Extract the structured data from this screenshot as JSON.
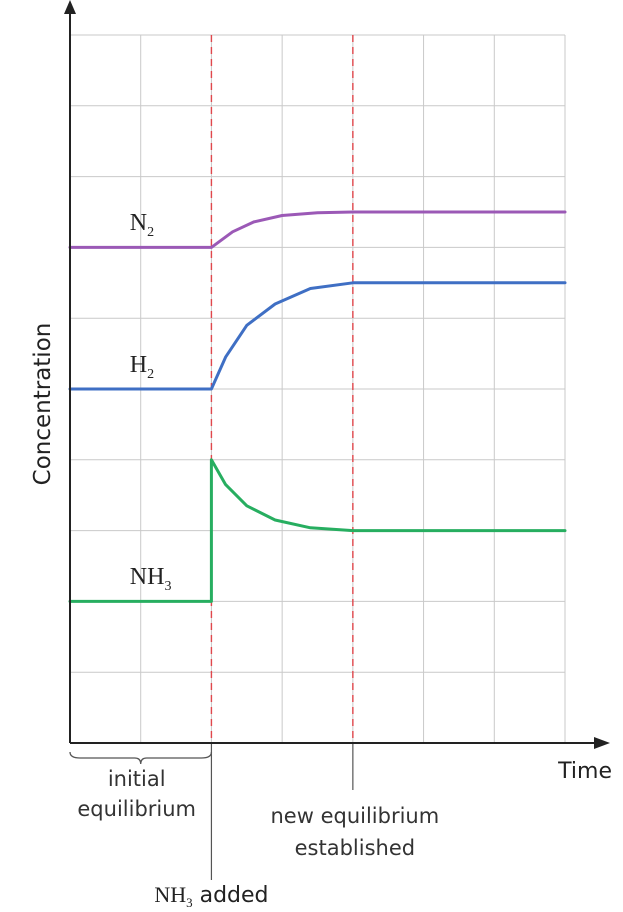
{
  "chart_data": {
    "type": "line",
    "xlabel": "Time",
    "ylabel": "Concentration",
    "xlim": [
      0,
      7
    ],
    "ylim": [
      0,
      10
    ],
    "grid": true,
    "events": [
      {
        "x": 2,
        "style": "dashed",
        "color": "#e0474c",
        "label": {
          "main": "NH",
          "sub": "3",
          "suffix": " added"
        }
      },
      {
        "x": 4,
        "style": "dashed",
        "color": "#e0474c",
        "label": {
          "lines": [
            "new equilibrium",
            "established"
          ]
        }
      }
    ],
    "annotations": {
      "initial_region": {
        "from": 0,
        "to": 2,
        "lines": [
          "initial",
          "equilibrium"
        ]
      }
    },
    "series": [
      {
        "name": "N2",
        "label_main": "N",
        "label_sub": "2",
        "color": "#9b59b6",
        "label_at": {
          "x": 1.1,
          "y": 7.3
        },
        "points": [
          [
            0,
            7
          ],
          [
            2,
            7
          ],
          [
            2.3,
            7.22
          ],
          [
            2.6,
            7.36
          ],
          [
            3.0,
            7.45
          ],
          [
            3.5,
            7.49
          ],
          [
            4,
            7.5
          ],
          [
            7,
            7.5
          ]
        ]
      },
      {
        "name": "H2",
        "label_main": "H",
        "label_sub": "2",
        "color": "#3f6fc4",
        "label_at": {
          "x": 1.1,
          "y": 5.3
        },
        "points": [
          [
            0,
            5
          ],
          [
            2,
            5
          ],
          [
            2.2,
            5.45
          ],
          [
            2.5,
            5.9
          ],
          [
            2.9,
            6.2
          ],
          [
            3.4,
            6.42
          ],
          [
            4,
            6.5
          ],
          [
            7,
            6.5
          ]
        ]
      },
      {
        "name": "NH3",
        "label_main": "NH",
        "label_sub": "3",
        "color": "#27ae60",
        "label_at": {
          "x": 1.1,
          "y": 2.3
        },
        "points": [
          [
            0,
            2
          ],
          [
            2,
            2
          ],
          [
            2,
            4
          ],
          [
            2.2,
            3.65
          ],
          [
            2.5,
            3.35
          ],
          [
            2.9,
            3.15
          ],
          [
            3.4,
            3.04
          ],
          [
            4,
            3.0
          ],
          [
            7,
            3.0
          ]
        ]
      }
    ]
  }
}
